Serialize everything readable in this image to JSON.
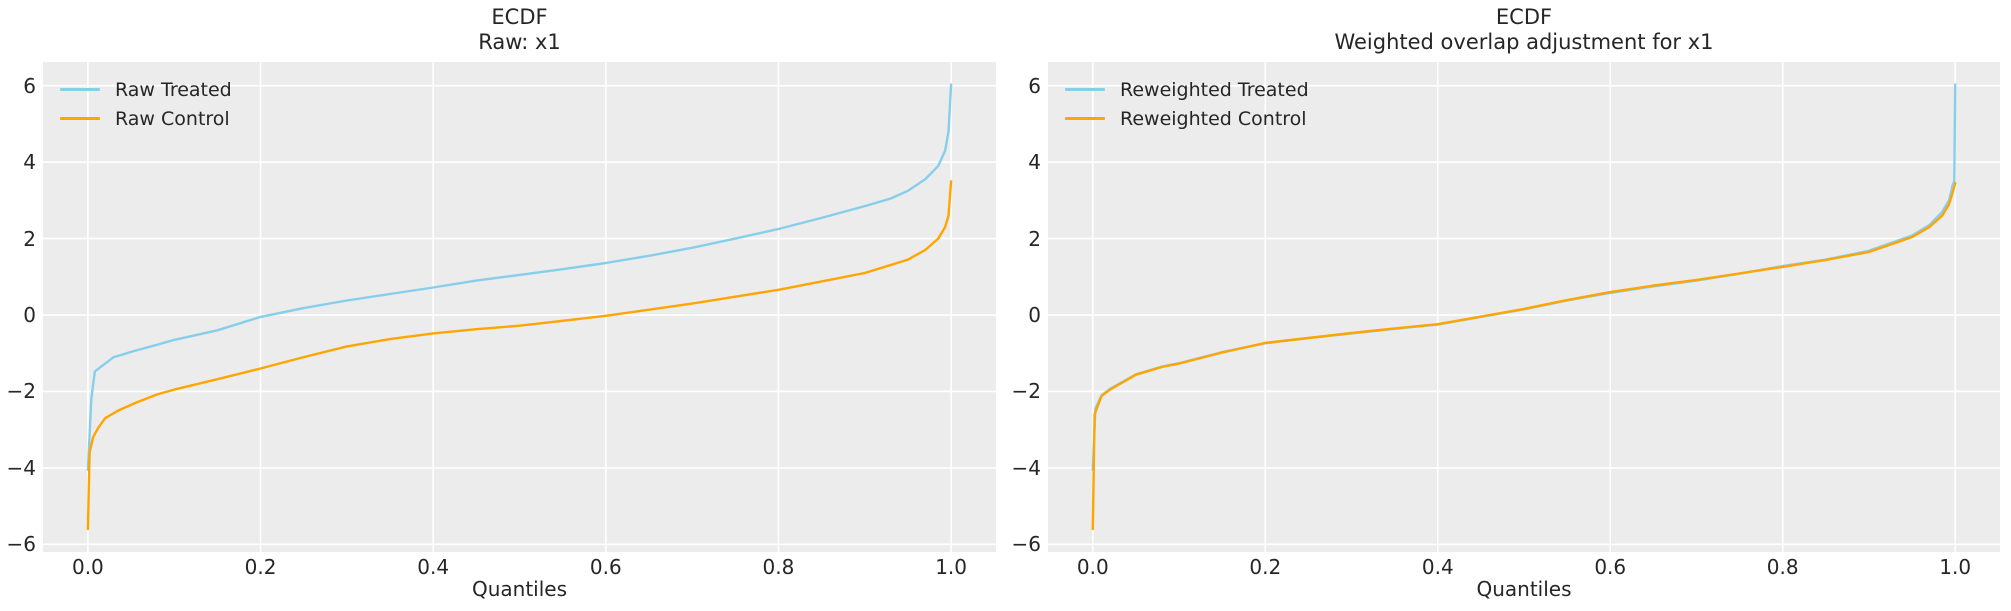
{
  "figure": {
    "background": "#ffffff",
    "axes_background": "#ececec",
    "grid_color": "#ffffff",
    "text_color": "#262626"
  },
  "chart_data": [
    {
      "type": "line",
      "title_line1": "ECDF",
      "title_line2": "Raw: x1",
      "xlabel": "Quantiles",
      "ylabel": "",
      "grid": true,
      "legend_position": "upper left",
      "xlim": [
        -0.052,
        1.052
      ],
      "ylim": [
        -6.2,
        6.62
      ],
      "xticks": [
        0,
        0.2,
        0.4,
        0.6,
        0.8,
        1.0
      ],
      "xtick_labels": [
        "0.0",
        "0.2",
        "0.4",
        "0.6",
        "0.8",
        "1.0"
      ],
      "yticks": [
        6,
        4,
        2,
        0,
        -2,
        -4,
        -6
      ],
      "ytick_labels": [
        "6",
        "4",
        "2",
        "0",
        "−2",
        "−4",
        "−6"
      ],
      "series": [
        {
          "name": "Raw Treated",
          "color": "#87CEEB",
          "x": [
            0,
            0.004,
            0.008,
            0.014,
            0.03,
            0.055,
            0.08,
            0.1,
            0.15,
            0.2,
            0.25,
            0.3,
            0.35,
            0.4,
            0.45,
            0.5,
            0.55,
            0.6,
            0.65,
            0.7,
            0.75,
            0.8,
            0.85,
            0.9,
            0.93,
            0.95,
            0.97,
            0.985,
            0.993,
            0.997,
            1.0
          ],
          "y": [
            -4.05,
            -2.2,
            -1.48,
            -1.37,
            -1.1,
            -0.93,
            -0.78,
            -0.65,
            -0.4,
            -0.05,
            0.18,
            0.38,
            0.55,
            0.72,
            0.9,
            1.05,
            1.2,
            1.36,
            1.55,
            1.76,
            2.0,
            2.25,
            2.54,
            2.85,
            3.05,
            3.25,
            3.55,
            3.9,
            4.3,
            4.8,
            6.03
          ]
        },
        {
          "name": "Raw Control",
          "color": "#FFA500",
          "x": [
            0,
            0.002,
            0.006,
            0.012,
            0.02,
            0.035,
            0.055,
            0.08,
            0.1,
            0.15,
            0.2,
            0.25,
            0.3,
            0.35,
            0.4,
            0.45,
            0.5,
            0.55,
            0.6,
            0.65,
            0.7,
            0.75,
            0.8,
            0.85,
            0.9,
            0.95,
            0.97,
            0.985,
            0.993,
            0.997,
            1.0
          ],
          "y": [
            -5.6,
            -3.6,
            -3.2,
            -2.95,
            -2.7,
            -2.5,
            -2.3,
            -2.08,
            -1.95,
            -1.68,
            -1.4,
            -1.1,
            -0.82,
            -0.63,
            -0.48,
            -0.37,
            -0.28,
            -0.15,
            -0.02,
            0.14,
            0.3,
            0.48,
            0.66,
            0.88,
            1.1,
            1.45,
            1.7,
            2.0,
            2.3,
            2.6,
            3.5
          ]
        }
      ]
    },
    {
      "type": "line",
      "title_line1": "ECDF",
      "title_line2": "Weighted overlap adjustment for x1",
      "xlabel": "Quantiles",
      "ylabel": "",
      "grid": true,
      "legend_position": "upper left",
      "xlim": [
        -0.052,
        1.052
      ],
      "ylim": [
        -6.2,
        6.62
      ],
      "xticks": [
        0,
        0.2,
        0.4,
        0.6,
        0.8,
        1.0
      ],
      "xtick_labels": [
        "0.0",
        "0.2",
        "0.4",
        "0.6",
        "0.8",
        "1.0"
      ],
      "yticks": [
        6,
        4,
        2,
        0,
        -2,
        -4,
        -6
      ],
      "ytick_labels": [
        "6",
        "4",
        "2",
        "0",
        "−2",
        "−4",
        "−6"
      ],
      "series": [
        {
          "name": "Reweighted Treated",
          "color": "#87CEEB",
          "x": [
            0,
            0.003,
            0.01,
            0.02,
            0.05,
            0.08,
            0.1,
            0.15,
            0.2,
            0.25,
            0.3,
            0.35,
            0.4,
            0.45,
            0.5,
            0.55,
            0.6,
            0.65,
            0.7,
            0.75,
            0.8,
            0.85,
            0.9,
            0.95,
            0.97,
            0.985,
            0.993,
            0.997,
            0.999,
            1.0
          ],
          "y": [
            -4.05,
            -2.45,
            -2.1,
            -1.93,
            -1.55,
            -1.35,
            -1.26,
            -0.97,
            -0.74,
            -0.6,
            -0.48,
            -0.36,
            -0.25,
            -0.05,
            0.15,
            0.38,
            0.58,
            0.75,
            0.9,
            1.08,
            1.28,
            1.45,
            1.68,
            2.08,
            2.35,
            2.7,
            3.0,
            3.4,
            3.5,
            6.03
          ]
        },
        {
          "name": "Reweighted Control",
          "color": "#FFA500",
          "x": [
            0,
            0.002,
            0.01,
            0.02,
            0.05,
            0.08,
            0.1,
            0.15,
            0.2,
            0.25,
            0.3,
            0.35,
            0.4,
            0.45,
            0.5,
            0.55,
            0.6,
            0.65,
            0.7,
            0.75,
            0.8,
            0.85,
            0.9,
            0.95,
            0.97,
            0.985,
            0.993,
            0.997,
            1.0
          ],
          "y": [
            -5.6,
            -2.6,
            -2.12,
            -1.95,
            -1.56,
            -1.36,
            -1.27,
            -0.98,
            -0.73,
            -0.6,
            -0.47,
            -0.35,
            -0.24,
            -0.04,
            0.16,
            0.39,
            0.6,
            0.77,
            0.92,
            1.09,
            1.26,
            1.44,
            1.65,
            2.04,
            2.3,
            2.6,
            2.9,
            3.2,
            3.45
          ]
        }
      ]
    }
  ]
}
